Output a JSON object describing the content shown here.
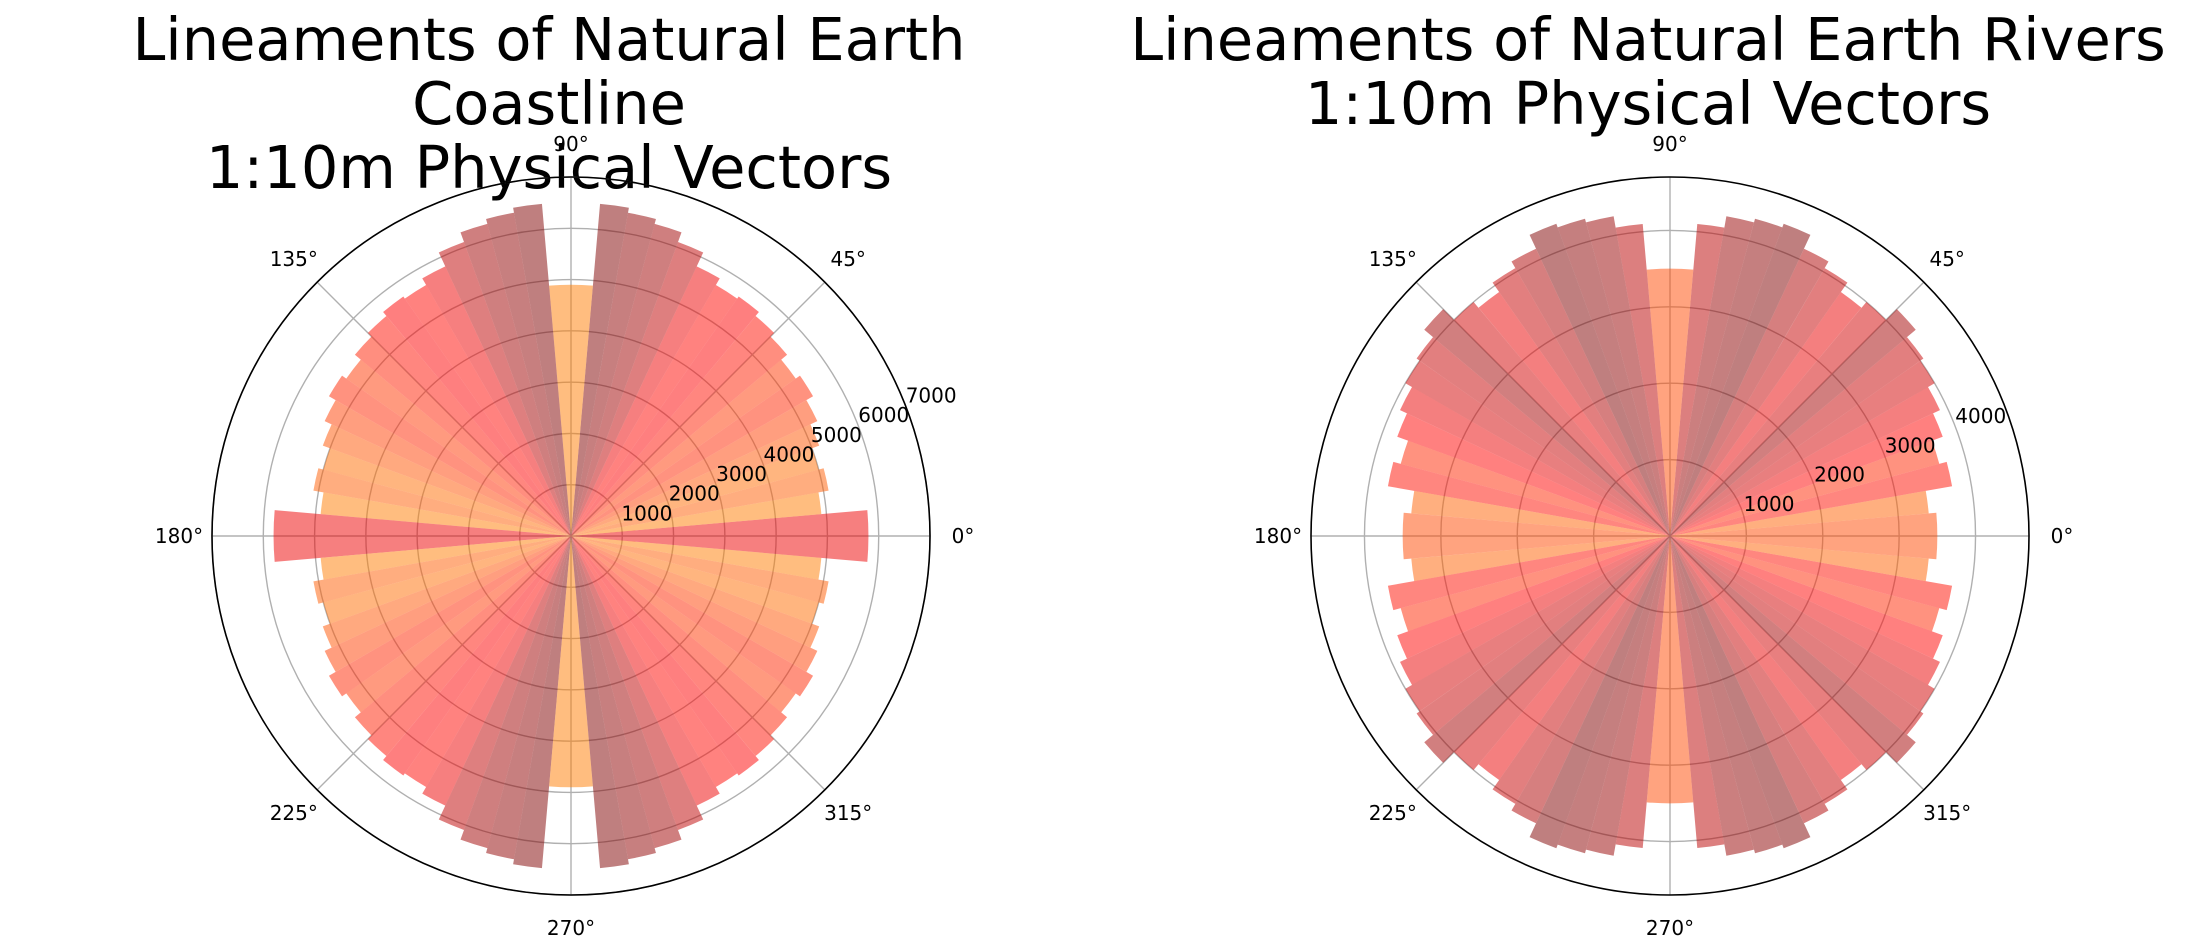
{
  "chart_data": [
    {
      "type": "polar-bar",
      "title_line1": "Lineaments of Natural Earth Coastline",
      "title_line2": "1:10m Physical Vectors",
      "angle_tick_labels": [
        "0°",
        "45°",
        "90°",
        "135°",
        "180°",
        "225°",
        "270°",
        "315°"
      ],
      "radial_tick_labels": [
        "1000",
        "2000",
        "3000",
        "4000",
        "5000",
        "6000",
        "7000"
      ],
      "radial_ticks": [
        1000,
        2000,
        3000,
        4000,
        5000,
        6000,
        7000
      ],
      "rmax": 7000,
      "grid": true,
      "colormap": "jet",
      "alpha": 0.5,
      "bin_width_deg": 5,
      "bin_centers_deg": [
        2.5,
        7.5,
        12.5,
        17.5,
        22.5,
        27.5,
        32.5,
        37.5,
        42.5,
        47.5,
        52.5,
        57.5,
        62.5,
        67.5,
        72.5,
        77.5,
        82.5,
        87.5,
        92.5,
        97.5,
        102.5,
        107.5,
        112.5,
        117.5,
        122.5,
        127.5,
        132.5,
        137.5,
        142.5,
        147.5,
        152.5,
        157.5,
        162.5,
        167.5,
        172.5,
        177.5
      ],
      "values": [
        5800,
        4900,
        5100,
        5000,
        5150,
        5300,
        5450,
        5350,
        5500,
        5600,
        5700,
        5650,
        5800,
        6100,
        6300,
        6400,
        6500,
        4900,
        4900,
        6500,
        6400,
        6300,
        6100,
        5800,
        5650,
        5700,
        5600,
        5500,
        5350,
        5450,
        5300,
        5150,
        5000,
        5100,
        4900,
        5800
      ]
    },
    {
      "type": "polar-bar",
      "title_line1": "Lineaments of Natural Earth Rivers",
      "title_line2": "1:10m Physical Vectors",
      "angle_tick_labels": [
        "0°",
        "45°",
        "90°",
        "135°",
        "180°",
        "225°",
        "270°",
        "315°"
      ],
      "radial_tick_labels": [
        "1000",
        "2000",
        "3000",
        "4000"
      ],
      "radial_ticks": [
        1000,
        2000,
        3000,
        4000
      ],
      "rmax": 4700,
      "grid": true,
      "colormap": "jet",
      "alpha": 0.5,
      "bin_width_deg": 5,
      "bin_centers_deg": [
        2.5,
        7.5,
        12.5,
        17.5,
        22.5,
        27.5,
        32.5,
        37.5,
        42.5,
        47.5,
        52.5,
        57.5,
        62.5,
        67.5,
        72.5,
        77.5,
        82.5,
        87.5,
        92.5,
        97.5,
        102.5,
        107.5,
        112.5,
        117.5,
        122.5,
        127.5,
        132.5,
        137.5,
        142.5,
        147.5,
        152.5,
        157.5,
        162.5,
        167.5,
        172.5,
        177.5
      ],
      "values": [
        3500,
        3400,
        3750,
        3650,
        3800,
        3900,
        4000,
        4050,
        4200,
        4000,
        3900,
        4050,
        4150,
        4350,
        4300,
        4250,
        4100,
        3500,
        3500,
        4100,
        4250,
        4300,
        4350,
        4150,
        4050,
        3900,
        4000,
        4200,
        4050,
        4000,
        3900,
        3800,
        3650,
        3750,
        3400,
        3500
      ]
    }
  ]
}
